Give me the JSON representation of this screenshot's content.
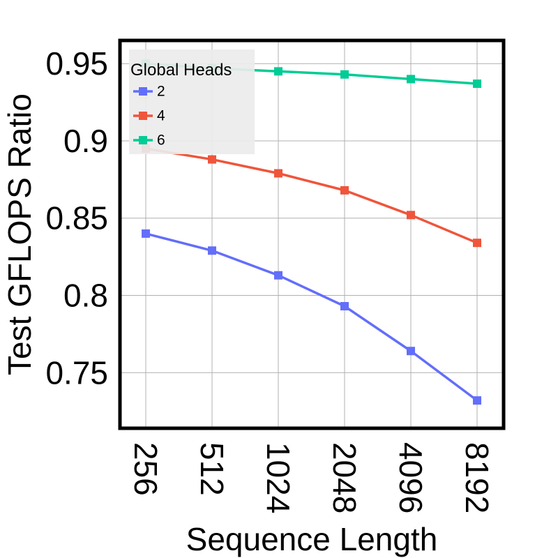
{
  "chart_data": {
    "type": "line",
    "xlabel": "Sequence Length",
    "ylabel": "Test GFLOPS Ratio",
    "categories": [
      "256",
      "512",
      "1024",
      "2048",
      "4096",
      "8192"
    ],
    "ylim": [
      0.714,
      0.965
    ],
    "yticks": [
      0.75,
      0.8,
      0.85,
      0.9,
      0.95
    ],
    "ytick_labels": [
      "0.75",
      "0.8",
      "0.85",
      "0.9",
      "0.95"
    ],
    "grid": true,
    "legend": {
      "title": "Global Heads",
      "placement": "top-left"
    },
    "series": [
      {
        "name": "2",
        "color": "#636EFA",
        "marker": "square",
        "values": [
          0.84,
          0.829,
          0.813,
          0.793,
          0.764,
          0.732
        ]
      },
      {
        "name": "4",
        "color": "#EF553B",
        "marker": "square",
        "values": [
          0.895,
          0.888,
          0.879,
          0.868,
          0.852,
          0.834
        ]
      },
      {
        "name": "6",
        "color": "#00CC96",
        "marker": "square",
        "values": [
          0.95,
          0.947,
          0.945,
          0.943,
          0.94,
          0.937
        ]
      }
    ]
  }
}
